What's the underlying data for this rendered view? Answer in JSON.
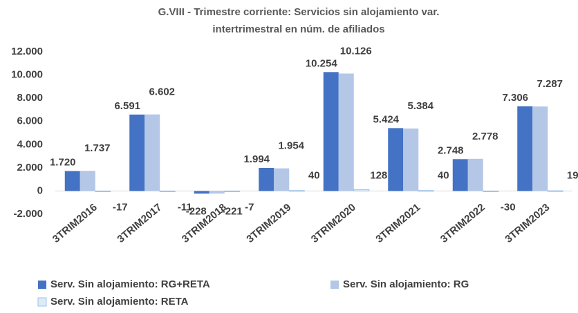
{
  "chart_data": {
    "type": "bar",
    "title": [
      "G.VIII  - Trimestre corriente: Servicios sin alojamiento var.",
      "intertrimestral en núm. de afiliados"
    ],
    "categories": [
      "3TRIM2016",
      "3TRIM2017",
      "3TRIM2018",
      "3TRIM2019",
      "3TRIM2020",
      "3TRIM2021",
      "3TRIM2022",
      "3TRIM2023"
    ],
    "series": [
      {
        "name": "Serv. Sin alojamiento: RG+RETA",
        "color": "#4472c4",
        "values": [
          1720,
          6591,
          -228,
          1994,
          10254,
          5424,
          2748,
          7306
        ],
        "value_labels": [
          "1.720",
          "6.591",
          "-228",
          "1.994",
          "10.254",
          "5.424",
          "2.748",
          "7.306"
        ]
      },
      {
        "name": "Serv. Sin alojamiento: RG",
        "color": "#b4c7e7",
        "values": [
          1737,
          6602,
          -221,
          1954,
          10126,
          5384,
          2778,
          7287
        ],
        "value_labels": [
          "1.737",
          "6.602",
          "-221",
          "1.954",
          "10.126",
          "5.384",
          "2.778",
          "7.287"
        ]
      },
      {
        "name": "Serv. Sin alojamiento: RETA",
        "color": "#deebf7",
        "values": [
          -17,
          -11,
          -7,
          40,
          128,
          40,
          -30,
          19
        ]
      }
    ],
    "ylim": [
      -2000,
      12000
    ],
    "yticks": [
      {
        "value": -2000,
        "label": "-2.000"
      },
      0,
      {
        "value": 2000,
        "label": "2.000"
      },
      {
        "value": 4000,
        "label": "4.000"
      },
      {
        "value": 6000,
        "label": "6.000"
      },
      {
        "value": 8000,
        "label": "8.000"
      },
      {
        "value": 10000,
        "label": "10.000"
      },
      {
        "value": 12000,
        "label": "12.000"
      }
    ],
    "grid": false
  }
}
